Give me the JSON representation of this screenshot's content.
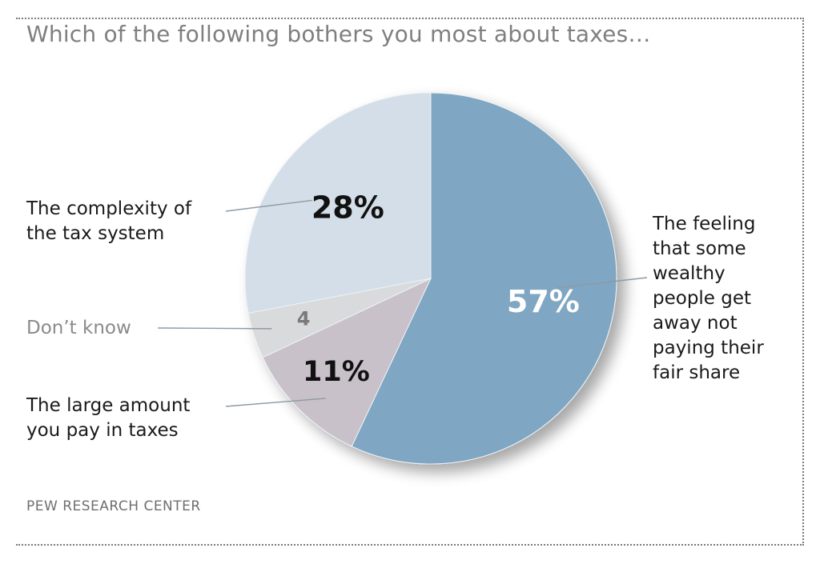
{
  "title": "Which of the following bothers you most about taxes…",
  "source": "PEW RESEARCH CENTER",
  "chart_data": {
    "type": "pie",
    "title": "Which of the following bothers you most about taxes…",
    "slices": [
      {
        "label": "The feeling that some wealthy people get away not paying their fair share",
        "value": 57,
        "value_label": "57%",
        "color": "#7fa6c2",
        "value_color": "#ffffff"
      },
      {
        "label": "The large amount you pay in taxes",
        "value": 11,
        "value_label": "11%",
        "color": "#c9c1ca",
        "value_color": "#111111"
      },
      {
        "label": "Don’t know",
        "value": 4,
        "value_label": "4",
        "color": "#d9dadb",
        "value_color": "#7a7a7a"
      },
      {
        "label": "The complexity of the tax system",
        "value": 28,
        "value_label": "28%",
        "color": "#d3dee8",
        "value_color": "#111111"
      }
    ]
  }
}
